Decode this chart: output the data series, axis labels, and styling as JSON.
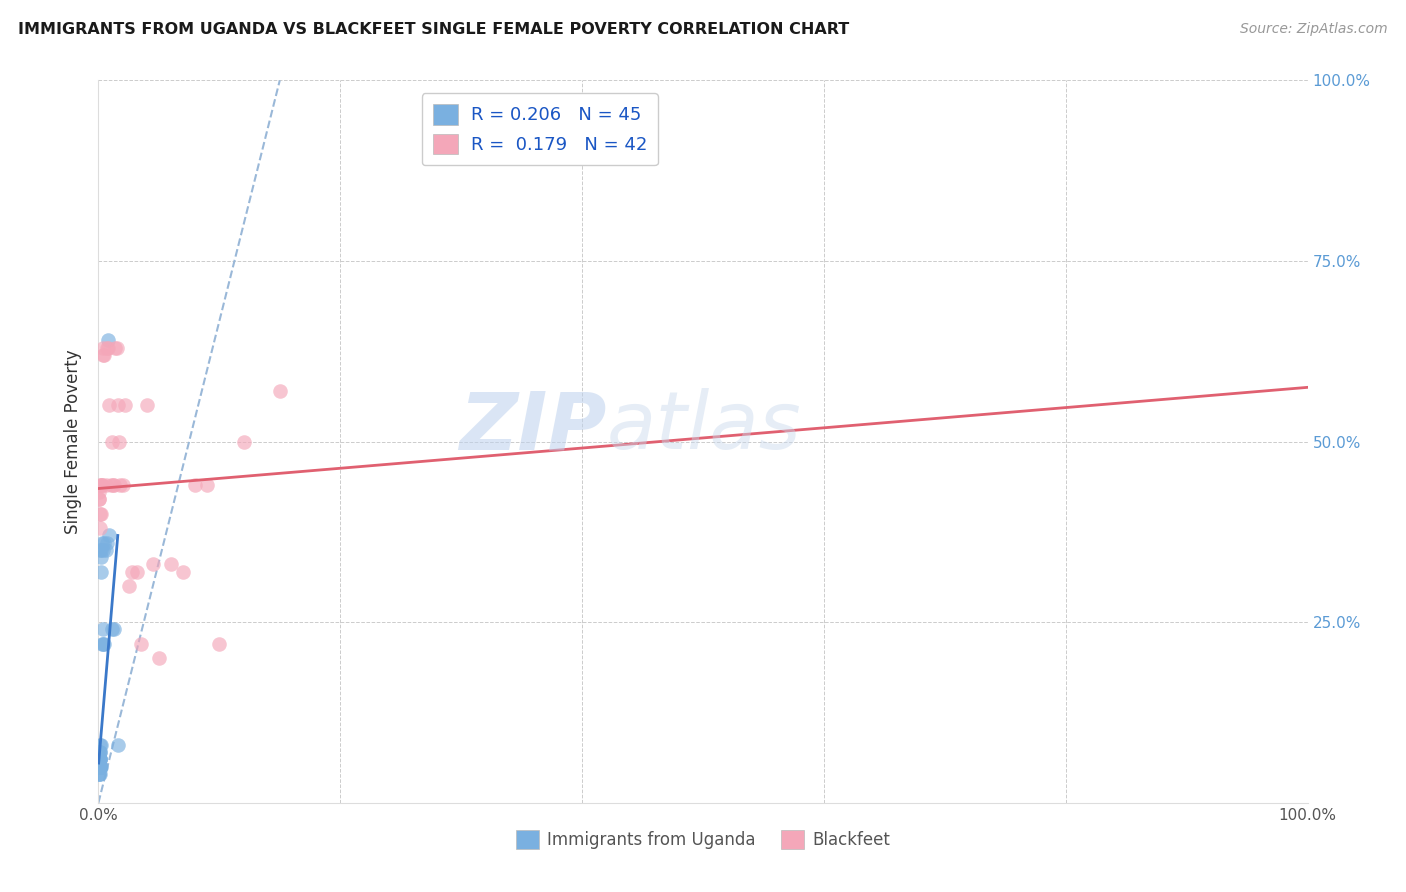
{
  "title": "IMMIGRANTS FROM UGANDA VS BLACKFEET SINGLE FEMALE POVERTY CORRELATION CHART",
  "source": "Source: ZipAtlas.com",
  "ylabel": "Single Female Poverty",
  "xlim": [
    0,
    1.0
  ],
  "ylim": [
    0,
    1.0
  ],
  "color_blue": "#7ab0e0",
  "color_pink": "#f4a7b9",
  "color_blue_line": "#3a78c9",
  "color_pink_line": "#e06070",
  "color_dashed": "#9ab8d8",
  "color_grid": "#cccccc",
  "watermark": "ZIPatlas",
  "uganda_x": [
    0.0002,
    0.0003,
    0.0004,
    0.0004,
    0.0005,
    0.0005,
    0.0006,
    0.0006,
    0.0007,
    0.0007,
    0.0008,
    0.0008,
    0.0009,
    0.0009,
    0.001,
    0.001,
    0.001,
    0.001,
    0.0012,
    0.0012,
    0.0013,
    0.0014,
    0.0015,
    0.0015,
    0.0016,
    0.0017,
    0.0018,
    0.002,
    0.002,
    0.0022,
    0.0025,
    0.003,
    0.003,
    0.0035,
    0.004,
    0.004,
    0.005,
    0.005,
    0.006,
    0.007,
    0.008,
    0.009,
    0.011,
    0.013,
    0.016
  ],
  "uganda_y": [
    0.05,
    0.06,
    0.05,
    0.07,
    0.04,
    0.06,
    0.05,
    0.07,
    0.05,
    0.06,
    0.04,
    0.06,
    0.05,
    0.06,
    0.04,
    0.05,
    0.06,
    0.07,
    0.05,
    0.06,
    0.05,
    0.07,
    0.35,
    0.05,
    0.08,
    0.06,
    0.32,
    0.08,
    0.35,
    0.05,
    0.34,
    0.22,
    0.36,
    0.24,
    0.22,
    0.35,
    0.22,
    0.36,
    0.35,
    0.36,
    0.64,
    0.37,
    0.24,
    0.24,
    0.08
  ],
  "blackfeet_x": [
    0.0003,
    0.0005,
    0.0008,
    0.001,
    0.0012,
    0.0015,
    0.002,
    0.002,
    0.003,
    0.003,
    0.004,
    0.004,
    0.005,
    0.006,
    0.007,
    0.008,
    0.009,
    0.01,
    0.011,
    0.012,
    0.013,
    0.014,
    0.015,
    0.016,
    0.017,
    0.018,
    0.02,
    0.022,
    0.025,
    0.028,
    0.032,
    0.035,
    0.04,
    0.045,
    0.05,
    0.06,
    0.07,
    0.08,
    0.09,
    0.1,
    0.12,
    0.15
  ],
  "blackfeet_y": [
    0.42,
    0.42,
    0.43,
    0.44,
    0.4,
    0.38,
    0.44,
    0.4,
    0.44,
    0.44,
    0.62,
    0.63,
    0.62,
    0.44,
    0.63,
    0.63,
    0.55,
    0.44,
    0.5,
    0.44,
    0.44,
    0.63,
    0.63,
    0.55,
    0.5,
    0.44,
    0.44,
    0.55,
    0.3,
    0.32,
    0.32,
    0.22,
    0.55,
    0.33,
    0.2,
    0.33,
    0.32,
    0.44,
    0.44,
    0.22,
    0.5,
    0.57
  ],
  "pink_line_x": [
    0.0,
    1.0
  ],
  "pink_line_y": [
    0.435,
    0.575
  ],
  "blue_line_x": [
    0.0002,
    0.016
  ],
  "blue_line_y": [
    0.055,
    0.37
  ]
}
